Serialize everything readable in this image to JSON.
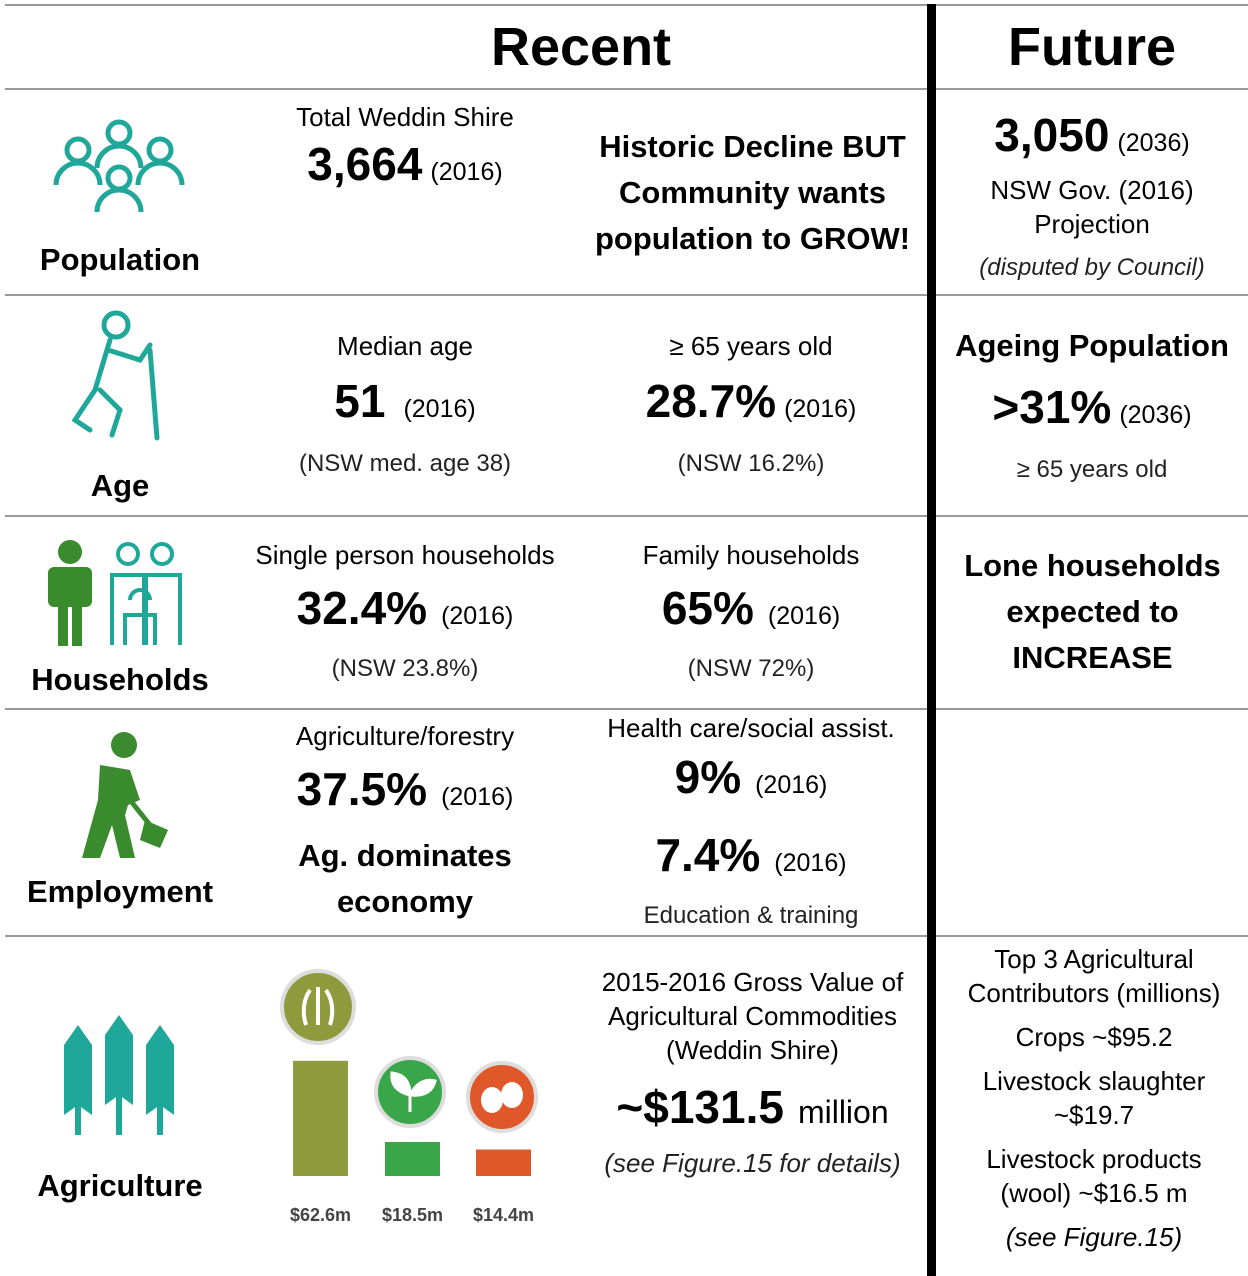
{
  "header": {
    "recent": "Recent",
    "future": "Future"
  },
  "rows": [
    {
      "label": "Population",
      "c1": {
        "caption": "Total Weddin Shire",
        "value": "3,664",
        "year": "(2016)"
      },
      "c2": {
        "text": "Historic Decline BUT Community wants population to GROW!"
      },
      "future": {
        "value": "3,050",
        "year": "(2036)",
        "note": "NSW Gov. (2016) Projection",
        "caveat": "(disputed by Council)"
      }
    },
    {
      "label": "Age",
      "c1": {
        "caption": "Median age",
        "value": "51",
        "year": "(2016)",
        "note": "(NSW med. age 38)"
      },
      "c2": {
        "caption": "≥ 65 years old",
        "value": "28.7%",
        "year": "(2016)",
        "note": "(NSW 16.2%)"
      },
      "future": {
        "title": "Ageing Population",
        "value": ">31%",
        "year": "(2036)",
        "note": "≥ 65 years old"
      }
    },
    {
      "label": "Households",
      "c1": {
        "caption": "Single person households",
        "value": "32.4%",
        "year": "(2016)",
        "note": "(NSW 23.8%)"
      },
      "c2": {
        "caption": "Family households",
        "value": "65%",
        "year": "(2016)",
        "note": "(NSW 72%)"
      },
      "future": {
        "title": "Lone households expected to INCREASE"
      }
    },
    {
      "label": "Employment",
      "c1": {
        "caption": "Agriculture/forestry",
        "value": "37.5%",
        "year": "(2016)",
        "note": "Ag. dominates economy"
      },
      "c2": {
        "caption": "Health care/social assist.",
        "value": "9%",
        "year": "(2016)",
        "value2": "7.4%",
        "year2": "(2016)",
        "note": "Education & training"
      }
    },
    {
      "label": "Agriculture",
      "bars": [
        {
          "value": 62.6,
          "label": "$62.6m",
          "color": "#8e9b3c"
        },
        {
          "value": 18.5,
          "label": "$18.5m",
          "color": "#3aa64a"
        },
        {
          "value": 14.4,
          "label": "$14.4m",
          "color": "#e0582a"
        }
      ],
      "c2": {
        "caption": "2015-2016 Gross Value of Agricultural Commodities (Weddin Shire)",
        "value": "~$131.5",
        "unit": "million",
        "note": "(see Figure.15 for details)"
      },
      "future": {
        "lines": [
          "Top 3 Agricultural Contributors (millions)",
          "Crops ~$95.2",
          "Livestock slaughter ~$19.7",
          "Livestock products (wool) ~$16.5 m",
          "(see Figure.15)"
        ]
      }
    }
  ]
}
